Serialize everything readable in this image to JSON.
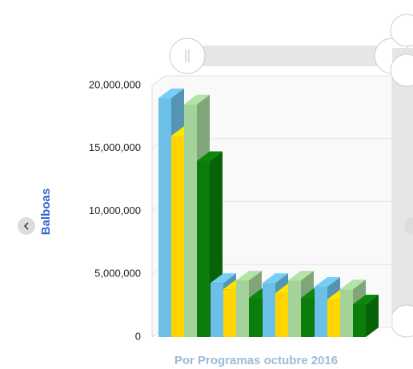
{
  "chart_data": {
    "type": "bar3d",
    "ylabel": "Balboas",
    "xlabel": "Por Programas octubre 2016",
    "categories": [
      null,
      null,
      null,
      null
    ],
    "series": [
      {
        "color": "#6cbfe6",
        "values": [
          19000000,
          4300000,
          4300000,
          4000000
        ]
      },
      {
        "color": "#ffd400",
        "values": [
          16000000,
          3800000,
          3500000,
          3000000
        ]
      },
      {
        "color": "#a4d39a",
        "values": [
          18500000,
          4500000,
          4500000,
          3800000
        ]
      },
      {
        "color": "#0a7d0a",
        "values": [
          14000000,
          3100000,
          3100000,
          2600000
        ]
      }
    ],
    "ylim": [
      0,
      20000000
    ],
    "yticks": [
      0,
      {
        "value": 5000000,
        "label": "5,000,000"
      },
      {
        "value": 10000000,
        "label": "10,000,000"
      },
      {
        "value": 15000000,
        "label": "15,000,000"
      },
      {
        "value": 20000000,
        "label": "20,000,000"
      }
    ],
    "grid": true
  }
}
